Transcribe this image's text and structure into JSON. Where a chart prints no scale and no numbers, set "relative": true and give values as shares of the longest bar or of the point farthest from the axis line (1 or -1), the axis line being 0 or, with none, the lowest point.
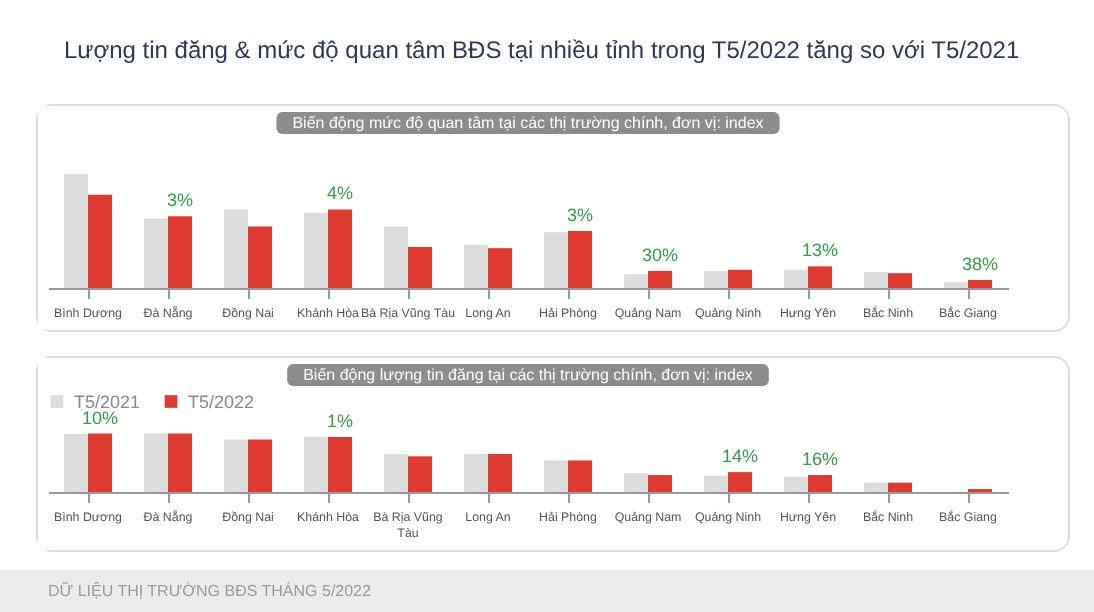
{
  "chart_data": [
    {
      "type": "bar",
      "title": "Lượng tin đăng & mức độ quan tâm BĐS tại nhiều tỉnh trong T5/2022 tăng so với T5/2021",
      "subtitle": "Biến động mức độ quan tâm tại các thị trường chính, đơn vị: index",
      "relative": true,
      "legend": false,
      "categories": [
        "Bình Dương",
        "Đà Nẵng",
        "Đồng Nai",
        "Khánh Hòa",
        "Bà Rịa Vũng Tàu",
        "Long An",
        "Hải Phòng",
        "Quảng Nam",
        "Quảng Ninh",
        "Hưng Yên",
        "Bắc Ninh",
        "Bắc Giang"
      ],
      "series": [
        {
          "color": "#dcdcdc",
          "values": [
            1,
            0.61,
            0.69,
            0.66,
            0.54,
            0.38,
            0.49,
            0.12,
            0.15,
            0.16,
            0.14,
            0.05
          ]
        },
        {
          "color": "#e0392e",
          "values": [
            0.82,
            0.63,
            0.54,
            0.69,
            0.36,
            0.35,
            0.5,
            0.15,
            0.16,
            0.19,
            0.13,
            0.07
          ]
        }
      ],
      "annotations": [
        {
          "text": "3%",
          "x": "Đà Nẵng",
          "y": 0.63
        },
        {
          "text": "4%",
          "x": "Khánh Hòa",
          "y": 0.69
        },
        {
          "text": "3%",
          "x": "Hải Phòng",
          "y": 0.5
        },
        {
          "text": "30%",
          "x": "Quảng Nam",
          "y": 0.15
        },
        {
          "text": "13%",
          "x": "Hưng Yên",
          "y": 0.19
        },
        {
          "text": "38%",
          "x": "Bắc Giang",
          "y": 0.07
        }
      ]
    },
    {
      "type": "bar",
      "title": "Biến động lượng tin đăng tại các thị trường chính, đơn vị: index",
      "relative": true,
      "legend": "top",
      "categories": [
        "Bình Dương",
        "Đà Nẵng",
        "Đồng Nai",
        "Khánh Hòa",
        "Bà Rịa Vũng Tàu",
        "Long An",
        "Hải Phòng",
        "Quảng Nam",
        "Quảng Ninh",
        "Hưng Yên",
        "Bắc Ninh",
        "Bắc Giang"
      ],
      "series": [
        {
          "name": "T5/2021",
          "color": "#dcdcdc",
          "values": [
            0.99,
            1,
            0.9,
            0.94,
            0.65,
            0.65,
            0.54,
            0.32,
            0.28,
            0.26,
            0.16,
            0
          ]
        },
        {
          "name": "T5/2022",
          "color": "#e0392e",
          "values": [
            1,
            1,
            0.9,
            0.94,
            0.61,
            0.65,
            0.54,
            0.29,
            0.34,
            0.29,
            0.16,
            0.05
          ]
        }
      ],
      "annotations": [
        {
          "text": "10%",
          "x": "Bình Dương",
          "y": 1
        },
        {
          "text": "1%",
          "x": "Khánh Hòa",
          "y": 0.94
        },
        {
          "text": "14%",
          "x": "Quảng Ninh",
          "y": 0.34
        },
        {
          "text": "16%",
          "x": "Hưng Yên",
          "y": 0.29
        },
        "DỮ LIỆU THỊ TRƯỜNG BĐS THÁNG 5/2022"
      ]
    }
  ]
}
